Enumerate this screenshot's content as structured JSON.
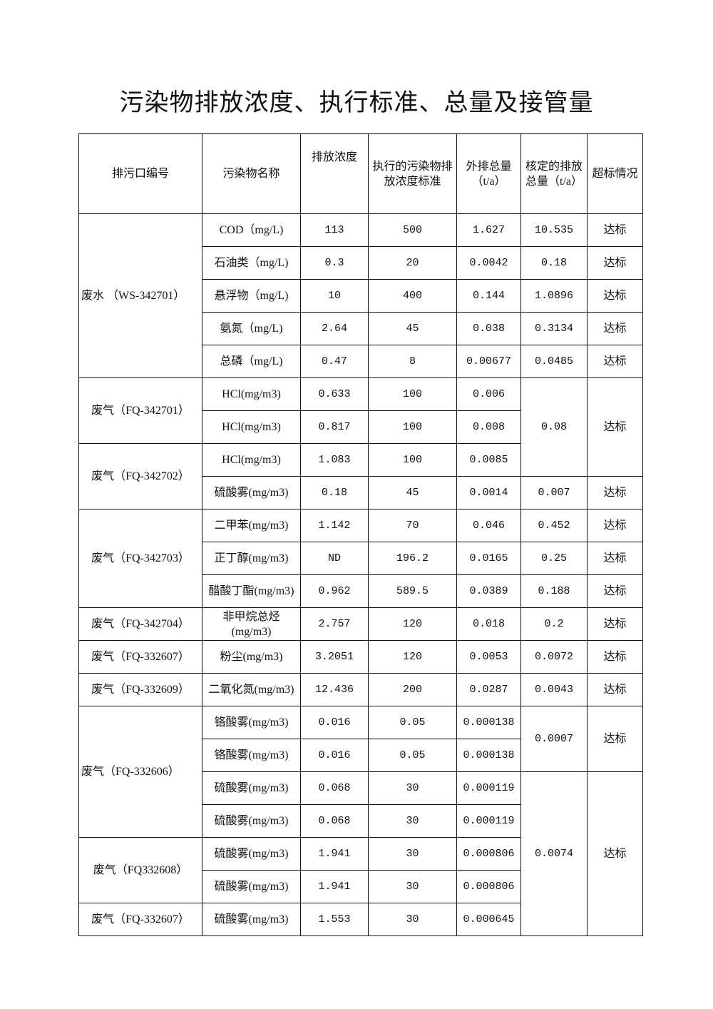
{
  "title": "污染物排放浓度、执行标准、总量及接管量",
  "headers": [
    "排污口编号",
    "污染物名称",
    "排放浓度",
    "执行的污染物排放浓度标准",
    "外排总量（t/a）",
    "核定的排放总量（t/a）",
    "超标情况"
  ],
  "outlets": [
    {
      "name": "废水 （WS-342701）",
      "rows": [
        {
          "pollutant": "COD（mg/L)",
          "concentration": "113",
          "standard": "500",
          "emission": "1.627",
          "approved": "10.535",
          "status": "达标"
        },
        {
          "pollutant": "石油类（mg/L)",
          "concentration": "0.3",
          "standard": "20",
          "emission": "0.0042",
          "approved": "0.18",
          "status": "达标"
        },
        {
          "pollutant": "悬浮物（mg/L)",
          "concentration": "10",
          "standard": "400",
          "emission": "0.144",
          "approved": "1.0896",
          "status": "达标"
        },
        {
          "pollutant": "氨氮（mg/L)",
          "concentration": "2.64",
          "standard": "45",
          "emission": "0.038",
          "approved": "0.3134",
          "status": "达标"
        },
        {
          "pollutant": "总磷（mg/L)",
          "concentration": "0.47",
          "standard": "8",
          "emission": "0.00677",
          "approved": "0.0485",
          "status": "达标"
        }
      ]
    },
    {
      "name": "废气（FQ-342701）",
      "rows": [
        {
          "pollutant": "HCl(mg/m3)",
          "concentration": "0.633",
          "standard": "100",
          "emission": "0.006",
          "approved": "0.08",
          "status": "达标"
        },
        {
          "pollutant": "HCl(mg/m3)",
          "concentration": "0.817",
          "standard": "100",
          "emission": "0.008"
        }
      ]
    },
    {
      "name": "废气（FQ-342702）",
      "rows": [
        {
          "pollutant": "HCl(mg/m3)",
          "concentration": "1.083",
          "standard": "100",
          "emission": "0.0085"
        },
        {
          "pollutant": "硫酸雾(mg/m3)",
          "concentration": "0.18",
          "standard": "45",
          "emission": "0.0014",
          "approved": "0.007",
          "status": "达标"
        }
      ]
    },
    {
      "name": "废气（FQ-342703）",
      "rows": [
        {
          "pollutant": "二甲苯(mg/m3)",
          "concentration": "1.142",
          "standard": "70",
          "emission": "0.046",
          "approved": "0.452",
          "status": "达标"
        },
        {
          "pollutant": "正丁醇(mg/m3)",
          "concentration": "ND",
          "standard": "196.2",
          "emission": "0.0165",
          "approved": "0.25",
          "status": "达标"
        },
        {
          "pollutant": "醋酸丁酯(mg/m3)",
          "concentration": "0.962",
          "standard": "589.5",
          "emission": "0.0389",
          "approved": "0.188",
          "status": "达标"
        }
      ]
    },
    {
      "name": "废气（FQ-342704）",
      "rows": [
        {
          "pollutant": "非甲烷总烃(mg/m3)",
          "concentration": "2.757",
          "standard": "120",
          "emission": "0.018",
          "approved": "0.2",
          "status": "达标"
        }
      ]
    },
    {
      "name": "废气（FQ-332607）",
      "rows": [
        {
          "pollutant": "粉尘(mg/m3)",
          "concentration": "3.2051",
          "standard": "120",
          "emission": "0.0053",
          "approved": "0.0072",
          "status": "达标"
        }
      ]
    },
    {
      "name": "废气（FQ-332609）",
      "rows": [
        {
          "pollutant": "二氧化氮(mg/m3)",
          "concentration": "12.436",
          "standard": "200",
          "emission": "0.0287",
          "approved": "0.0043",
          "status": "达标"
        }
      ]
    },
    {
      "name": "废气（FQ-332606）",
      "rows": [
        {
          "pollutant": "铬酸雾(mg/m3)",
          "concentration": "0.016",
          "standard": "0.05",
          "emission": "0.000138",
          "approved": "0.0007",
          "status": "达标"
        },
        {
          "pollutant": "铬酸雾(mg/m3)",
          "concentration": "0.016",
          "standard": "0.05",
          "emission": "0.000138"
        },
        {
          "pollutant": "硫酸雾(mg/m3)",
          "concentration": "0.068",
          "standard": "30",
          "emission": "0.000119",
          "approved": "0.0074",
          "status": "达标"
        },
        {
          "pollutant": "硫酸雾(mg/m3)",
          "concentration": "0.068",
          "standard": "30",
          "emission": "0.000119"
        }
      ]
    },
    {
      "name": "废气（FQ332608）",
      "rows": [
        {
          "pollutant": "硫酸雾(mg/m3)",
          "concentration": "1.941",
          "standard": "30",
          "emission": "0.000806"
        },
        {
          "pollutant": "硫酸雾(mg/m3)",
          "concentration": "1.941",
          "standard": "30",
          "emission": "0.000806"
        }
      ]
    },
    {
      "name": "废气（FQ-332607）",
      "rows": [
        {
          "pollutant": "硫酸雾(mg/m3)",
          "concentration": "1.553",
          "standard": "30",
          "emission": "0.000645"
        }
      ]
    }
  ]
}
